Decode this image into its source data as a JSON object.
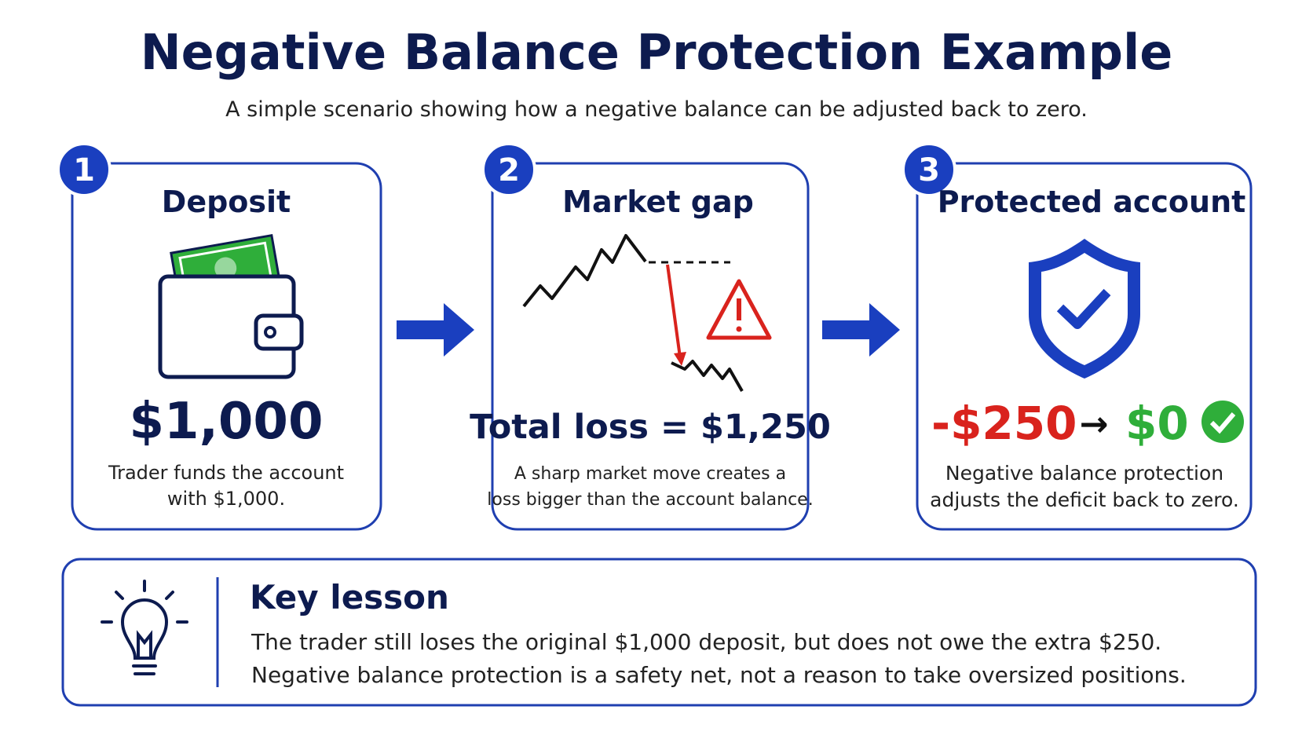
{
  "header": {
    "title": "Negative Balance Protection Example",
    "subtitle": "A simple scenario showing how a negative balance can be adjusted back to zero."
  },
  "steps": [
    {
      "number": "1",
      "title": "Deposit",
      "amount": "$1,000",
      "description": [
        "Trader funds the account",
        "with $1,000."
      ]
    },
    {
      "number": "2",
      "title": "Market gap",
      "amount": "Total loss = $1,250",
      "description": [
        "A sharp market move creates a",
        "loss bigger than the account balance."
      ]
    },
    {
      "number": "3",
      "title": "Protected account",
      "amount_from": "-$250",
      "amount_arrow": "→",
      "amount_to": "$0",
      "description": [
        "Negative balance protection",
        "adjusts the deficit back to zero."
      ]
    }
  ],
  "lesson": {
    "title": "Key lesson",
    "lines": [
      "The trader still loses the original $1,000 deposit, but does not owe the extra $250.",
      "Negative balance protection is a safety net, not a reason to take oversized positions."
    ]
  }
}
